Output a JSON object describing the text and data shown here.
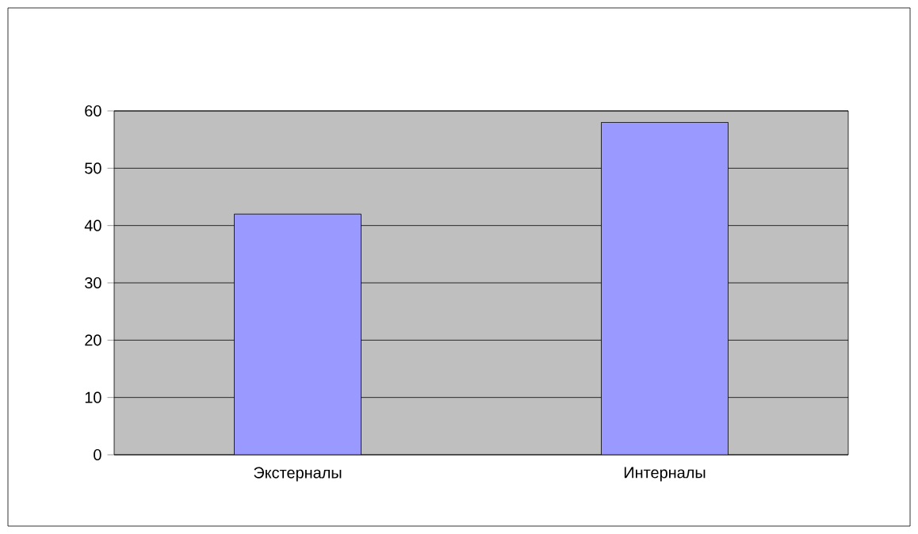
{
  "chart_data": {
    "type": "bar",
    "categories": [
      "Экстерналы",
      "Интерналы"
    ],
    "values": [
      42,
      58
    ],
    "color": "#9999ff",
    "ylim": [
      0,
      60
    ],
    "yticks": [
      0,
      10,
      20,
      30,
      40,
      50,
      60
    ],
    "grid": "y"
  }
}
